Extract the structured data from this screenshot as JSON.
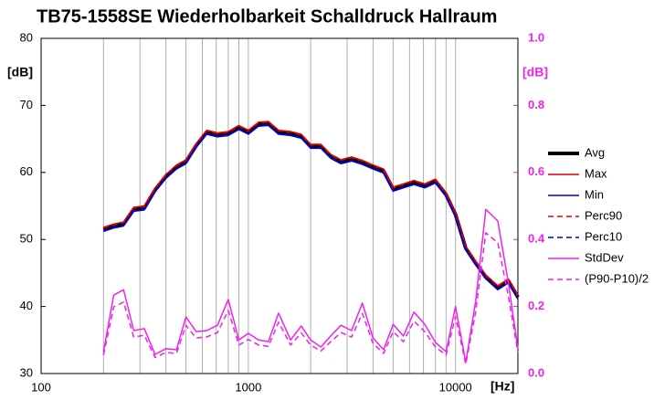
{
  "chart_data": {
    "type": "line",
    "title": "TB75-1558SE Wiederholbarkeit Schalldruck Hallraum",
    "y_label": "[dB]",
    "y2_label": "[dB]",
    "x_label": "[Hz]",
    "x_scale": "log",
    "x": [
      200,
      224,
      250,
      280,
      315,
      355,
      400,
      450,
      500,
      560,
      630,
      710,
      800,
      900,
      1000,
      1120,
      1250,
      1400,
      1600,
      1800,
      2000,
      2240,
      2500,
      2800,
      3150,
      3550,
      4000,
      4500,
      5000,
      5600,
      6300,
      7100,
      8000,
      9000,
      10000,
      11200,
      12500,
      14000,
      16000,
      18000,
      20000
    ],
    "xlim": [
      100,
      20000
    ],
    "xticks": [
      100,
      1000,
      10000
    ],
    "xgrid": [
      100,
      200,
      300,
      400,
      500,
      600,
      700,
      800,
      900,
      1000,
      2000,
      3000,
      4000,
      5000,
      6000,
      7000,
      8000,
      9000,
      10000,
      20000
    ],
    "ylim": [
      30,
      80
    ],
    "yticks": [
      30,
      40,
      50,
      60,
      70,
      80
    ],
    "y2lim": [
      0,
      1
    ],
    "y2ticks": [
      {
        "value": 0,
        "label": "0.0"
      },
      0.2,
      0.4,
      0.6,
      0.8,
      {
        "value": 1,
        "label": "1.0"
      }
    ],
    "y2color": "#ee22ee",
    "legend": "right",
    "series": [
      {
        "name": "Avg",
        "color": "#000000",
        "width": 4,
        "dash": "solid",
        "axis": "y",
        "values": [
          51.5,
          52,
          52.3,
          54.5,
          54.7,
          57.4,
          59.4,
          60.8,
          61.6,
          64,
          66,
          65.6,
          65.8,
          66.7,
          66,
          67.2,
          67.3,
          66,
          65.8,
          65.4,
          63.9,
          63.9,
          62.4,
          61.6,
          62,
          61.5,
          60.8,
          60.2,
          57.5,
          58,
          58.5,
          58,
          58.7,
          56.7,
          53.7,
          48.7,
          46.5,
          44.4,
          42.8,
          43.8,
          41.4
        ]
      },
      {
        "name": "Max",
        "color": "#dd0000",
        "width": 1.5,
        "dash": "solid",
        "axis": "y",
        "values": [
          51.8,
          52.3,
          52.6,
          54.8,
          55,
          57.7,
          59.7,
          61.1,
          61.9,
          64.3,
          66.3,
          65.9,
          66.1,
          67,
          66.3,
          67.5,
          67.6,
          66.3,
          66.1,
          65.7,
          64.2,
          64.2,
          62.7,
          61.9,
          62.3,
          61.8,
          61.1,
          60.5,
          57.8,
          58.3,
          58.8,
          58.3,
          59,
          57,
          54,
          49,
          46.8,
          44.7,
          43.1,
          44.1,
          41.7
        ]
      },
      {
        "name": "Min",
        "color": "#0000dd",
        "width": 1.5,
        "dash": "solid",
        "axis": "y",
        "values": [
          51.2,
          51.7,
          52,
          54.2,
          54.4,
          57.1,
          59.1,
          60.5,
          61.3,
          63.7,
          65.7,
          65.3,
          65.5,
          66.4,
          65.7,
          66.9,
          67,
          65.7,
          65.5,
          65.1,
          63.6,
          63.6,
          62.1,
          61.3,
          61.7,
          61.2,
          60.5,
          59.9,
          57.2,
          57.7,
          58.2,
          57.7,
          58.4,
          56.4,
          53.4,
          48.4,
          46.2,
          44.1,
          42.5,
          43.5,
          41.1
        ]
      },
      {
        "name": "Perc90",
        "color": "#dd0000",
        "width": 1.5,
        "dash": "dashed",
        "axis": "y",
        "values": [
          51.7,
          52.2,
          52.5,
          54.7,
          54.9,
          57.6,
          59.6,
          61,
          61.8,
          64.2,
          66.2,
          65.8,
          66,
          66.9,
          66.2,
          67.4,
          67.5,
          66.2,
          66,
          65.6,
          64.1,
          64.1,
          62.6,
          61.8,
          62.2,
          61.7,
          61,
          60.4,
          57.7,
          58.2,
          58.7,
          58.2,
          58.9,
          56.9,
          53.9,
          48.9,
          46.7,
          44.6,
          43,
          44,
          41.6
        ]
      },
      {
        "name": "Perc10",
        "color": "#0000dd",
        "width": 1.5,
        "dash": "dashed",
        "axis": "y",
        "values": [
          51.3,
          51.8,
          52.1,
          54.3,
          54.5,
          57.2,
          59.2,
          60.6,
          61.4,
          63.8,
          65.8,
          65.4,
          65.6,
          66.5,
          65.8,
          67,
          67.1,
          65.8,
          65.6,
          65.2,
          63.7,
          63.7,
          62.2,
          61.4,
          61.8,
          61.3,
          60.6,
          60,
          57.3,
          57.8,
          58.3,
          57.8,
          58.5,
          56.5,
          53.5,
          48.5,
          46.3,
          44.2,
          42.6,
          43.6,
          41.2
        ]
      },
      {
        "name": "StdDev",
        "color": "#ee22ee",
        "width": 1.5,
        "dash": "solid",
        "axis": "y2",
        "values": [
          0.065,
          0.234,
          0.25,
          0.128,
          0.134,
          0.057,
          0.074,
          0.071,
          0.169,
          0.125,
          0.128,
          0.144,
          0.221,
          0.1,
          0.12,
          0.1,
          0.095,
          0.18,
          0.1,
          0.142,
          0.1,
          0.079,
          0.112,
          0.144,
          0.128,
          0.21,
          0.106,
          0.071,
          0.147,
          0.112,
          0.183,
          0.147,
          0.093,
          0.065,
          0.2,
          0.033,
          0.215,
          0.49,
          0.455,
          0.27,
          0.074
        ]
      },
      {
        "name": "(P90-P10)/2",
        "color": "#ee22ee",
        "width": 1.5,
        "dash": "dashed",
        "axis": "y2",
        "values": [
          0.055,
          0.199,
          0.213,
          0.109,
          0.114,
          0.048,
          0.063,
          0.06,
          0.144,
          0.106,
          0.109,
          0.122,
          0.188,
          0.085,
          0.102,
          0.085,
          0.081,
          0.153,
          0.085,
          0.121,
          0.085,
          0.067,
          0.095,
          0.122,
          0.109,
          0.179,
          0.09,
          0.06,
          0.125,
          0.095,
          0.156,
          0.125,
          0.079,
          0.055,
          0.17,
          0.028,
          0.183,
          0.42,
          0.39,
          0.23,
          0.063
        ]
      }
    ]
  }
}
